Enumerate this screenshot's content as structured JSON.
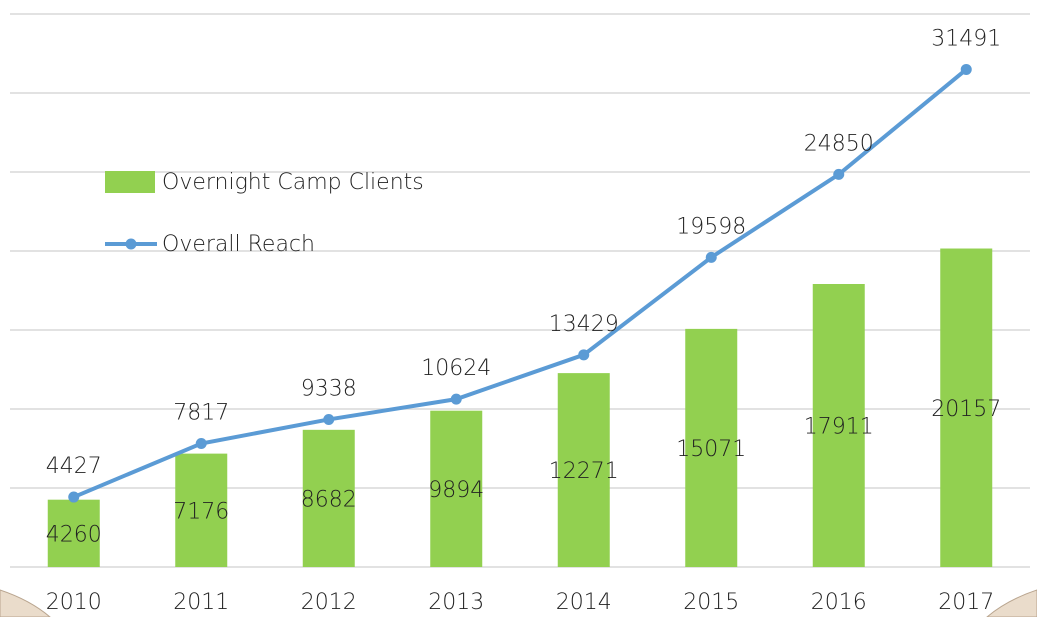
{
  "chart_data": {
    "type": "bar_line",
    "categories": [
      "2010",
      "2011",
      "2012",
      "2013",
      "2014",
      "2015",
      "2016",
      "2017"
    ],
    "series": [
      {
        "name": "Overnight Camp Clients",
        "type": "bar",
        "color": "#92d050",
        "values": [
          4260,
          7176,
          8682,
          9894,
          12271,
          15071,
          17911,
          20157
        ]
      },
      {
        "name": "Overall Reach",
        "type": "line",
        "color": "#5b9bd5",
        "values": [
          4427,
          7817,
          9338,
          10624,
          13429,
          19598,
          24850,
          31491
        ]
      }
    ],
    "ylim": [
      0,
      35000
    ],
    "yticks": [
      0,
      5000,
      10000,
      15000,
      20000,
      25000,
      30000,
      35000
    ],
    "grid": true,
    "legend": "upper left"
  }
}
